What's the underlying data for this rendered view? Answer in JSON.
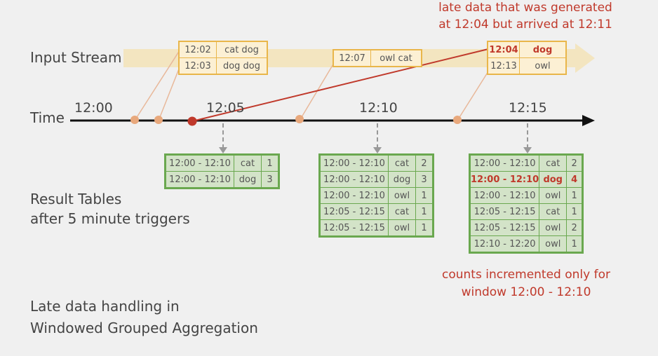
{
  "labels": {
    "input_stream": "Input Stream",
    "time": "Time",
    "result_tables_line1": "Result Tables",
    "result_tables_line2": "after 5 minute triggers",
    "footer_line1": "Late data handling in",
    "footer_line2": "Windowed Grouped Aggregation",
    "late_note_line1": "late data that was generated",
    "late_note_line2": "at 12:04 but arrived at 12:11",
    "counts_note_line1": "counts incremented only for",
    "counts_note_line2": "window 12:00 - 12:10"
  },
  "time_ticks": [
    "12:00",
    "12:05",
    "12:10",
    "12:15"
  ],
  "event_boxes": [
    {
      "rows": [
        {
          "time": "12:02",
          "words": "cat dog"
        },
        {
          "time": "12:03",
          "words": "dog dog"
        }
      ]
    },
    {
      "rows": [
        {
          "time": "12:07",
          "words": "owl cat"
        }
      ]
    },
    {
      "rows": [
        {
          "time": "12:04",
          "words": "dog",
          "late": true
        },
        {
          "time": "12:13",
          "words": "owl"
        }
      ]
    }
  ],
  "result_tables": [
    {
      "rows": [
        {
          "window": "12:00 - 12:10",
          "word": "cat",
          "count": "1"
        },
        {
          "window": "12:00 - 12:10",
          "word": "dog",
          "count": "3"
        }
      ]
    },
    {
      "rows": [
        {
          "window": "12:00 - 12:10",
          "word": "cat",
          "count": "2"
        },
        {
          "window": "12:00 - 12:10",
          "word": "dog",
          "count": "3"
        },
        {
          "window": "12:00 - 12:10",
          "word": "owl",
          "count": "1"
        },
        {
          "window": "12:05 - 12:15",
          "word": "cat",
          "count": "1"
        },
        {
          "window": "12:05 - 12:15",
          "word": "owl",
          "count": "1"
        }
      ]
    },
    {
      "rows": [
        {
          "window": "12:00 - 12:10",
          "word": "cat",
          "count": "2"
        },
        {
          "window": "12:00 - 12:10",
          "word": "dog",
          "count": "4",
          "late": true
        },
        {
          "window": "12:00 - 12:10",
          "word": "owl",
          "count": "1"
        },
        {
          "window": "12:05 - 12:15",
          "word": "cat",
          "count": "1"
        },
        {
          "window": "12:05 - 12:15",
          "word": "owl",
          "count": "2"
        },
        {
          "window": "12:10 - 12:20",
          "word": "owl",
          "count": "1"
        }
      ]
    }
  ],
  "colors": {
    "stream_band": "#f3e5c0",
    "event_border": "#e9b64a",
    "event_fill": "#fcf0d4",
    "result_border": "#6aa84f",
    "result_fill": "#d3e3c8",
    "late_red": "#c0392b",
    "dot_orange": "#e8a87c",
    "connector": "#e8b89a",
    "arrow_gray": "#999999"
  }
}
